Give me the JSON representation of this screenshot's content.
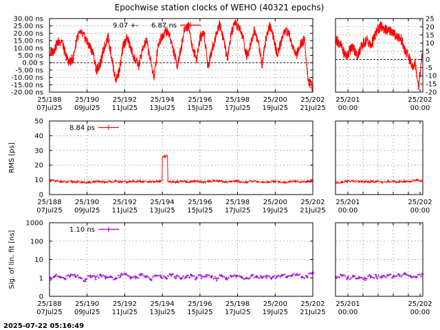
{
  "title": "Epochwise station clocks of WEHO (40321 epochs)",
  "timestamp": "2025-07-22 05:16:49",
  "colors": {
    "clock": "#ff0000",
    "rms": "#ff0000",
    "fit": "#9400d3"
  },
  "chart_data": [
    {
      "id": "clock",
      "type": "line",
      "ylabel": "",
      "ylim": [
        -20,
        30
      ],
      "left_yticks": [
        "-20.00 ns",
        "-15.00 ns",
        "-10.00 ns",
        "-5.00 ns",
        "0.00 s",
        "5.00 ns",
        "10.00 ns",
        "15.00 ns",
        "20.00 ns",
        "25.00 ns",
        "30.00 ns"
      ],
      "right_ylim": [
        -20,
        25
      ],
      "right_yticks": [
        "-20",
        "-15",
        "-10",
        "-5",
        "0",
        "5",
        "10",
        "15",
        "20",
        "25"
      ],
      "xticks_top": [
        "25/188",
        "25/190",
        "25/192",
        "25/194",
        "25/196",
        "25/198",
        "25/200",
        "25/202"
      ],
      "xticks_bottom": [
        "07Jul25",
        "09Jul25",
        "11Jul25",
        "13Jul25",
        "15Jul25",
        "17Jul25",
        "19Jul25",
        "21Jul25"
      ],
      "right_xticks_top": [
        "25/201",
        "25/202"
      ],
      "right_xticks_bottom": [
        "00:00",
        "00:00"
      ],
      "legend": [
        {
          "label": "9.07 +-",
          "style": "text"
        },
        {
          "label": "6.87 ns",
          "style": "line"
        }
      ],
      "series": [
        {
          "values": [
            6,
            9,
            14,
            15,
            5,
            0,
            3,
            18,
            20,
            17,
            12,
            8,
            -5,
            -1,
            10,
            18,
            3,
            -12,
            -5,
            12,
            17,
            9,
            2,
            -2,
            9,
            15,
            2,
            -10,
            12,
            18,
            22,
            19,
            8,
            -2,
            10,
            24,
            25,
            9,
            3,
            18,
            20,
            -3,
            9,
            18,
            27,
            16,
            2,
            20,
            26,
            24,
            18,
            4,
            13,
            22,
            14,
            -1,
            17,
            26,
            16,
            5,
            15,
            22,
            20,
            10,
            5,
            12,
            16,
            -12,
            -17
          ]
        },
        {
          "values": [
            12,
            10,
            5,
            2,
            6,
            8,
            2,
            6,
            10,
            12,
            8,
            13,
            18,
            20,
            19,
            17,
            18,
            15,
            14,
            12,
            5,
            2,
            -4,
            -2,
            -16,
            2
          ]
        }
      ]
    },
    {
      "id": "rms",
      "type": "line",
      "ylabel": "RMS [ps]",
      "ylim": [
        0,
        50
      ],
      "left_yticks": [
        "0",
        "10",
        "20",
        "30",
        "40",
        "50"
      ],
      "xticks_top": [
        "25/188",
        "25/190",
        "25/192",
        "25/194",
        "25/196",
        "25/198",
        "25/200",
        "25/202"
      ],
      "xticks_bottom": [
        "07Jul25",
        "09Jul25",
        "11Jul25",
        "13Jul25",
        "15Jul25",
        "17Jul25",
        "19Jul25",
        "21Jul25"
      ],
      "right_xticks_top": [
        "25/201",
        "25/202"
      ],
      "right_xticks_bottom": [
        "00:00",
        "00:00"
      ],
      "legend": [
        {
          "label": "8.84 ps",
          "style": "line"
        }
      ],
      "series": [
        {
          "values": [
            9.5,
            9.0,
            8.9,
            8.4,
            8.8,
            8.6,
            8.3,
            8.1,
            8.9,
            8.7,
            8.5,
            8.8,
            9.0,
            8.6,
            8.4,
            8.9,
            9.1,
            8.7,
            8.5,
            8.6,
            9.0,
            26.0,
            8.8,
            8.5,
            8.9,
            8.6,
            8.7,
            9.0,
            8.4,
            8.8,
            9.4,
            9.1,
            8.6,
            8.9,
            9.2,
            8.7,
            8.5,
            8.9,
            8.8,
            8.3,
            8.6,
            9.0,
            8.7,
            8.4,
            8.8,
            8.9,
            8.6,
            8.8,
            9.3
          ]
        },
        {
          "values": [
            8.0,
            8.6,
            9.2,
            9.0,
            8.8,
            8.6,
            8.7,
            8.9,
            8.5,
            8.7,
            8.8,
            8.6,
            9.0,
            8.9,
            10.0,
            9.2
          ]
        }
      ]
    },
    {
      "id": "fit",
      "type": "scatter",
      "ylabel": "Sig. of lin. fit [ns]",
      "scale": "log",
      "ylim": [
        0.1,
        1000
      ],
      "left_yticks": [
        "0",
        "1",
        "10",
        "100",
        "1000"
      ],
      "xticks_top": [
        "25/188",
        "25/190",
        "25/192",
        "25/194",
        "25/196",
        "25/198",
        "25/200",
        "25/202"
      ],
      "xticks_bottom": [
        "07Jul25",
        "09Jul25",
        "11Jul25",
        "13Jul25",
        "15Jul25",
        "17Jul25",
        "19Jul25",
        "21Jul25"
      ],
      "right_xticks_top": [
        "25/201",
        "25/202"
      ],
      "right_xticks_bottom": [
        "00:00",
        "00:00"
      ],
      "legend": [
        {
          "label": "1.10 ns",
          "style": "line"
        }
      ],
      "series": [
        {
          "values": [
            1.0,
            1.3,
            1.1,
            0.9,
            1.4,
            1.2,
            1.0,
            0.8,
            1.3,
            1.1,
            1.5,
            1.0,
            1.2,
            0.9,
            1.3,
            1.6,
            1.1,
            1.0,
            1.4,
            1.2,
            0.8,
            1.3,
            1.1,
            1.0,
            1.5,
            1.2,
            0.9,
            1.1,
            1.4,
            1.0,
            1.3,
            1.2,
            1.1,
            0.9,
            1.4,
            1.0,
            1.2,
            1.3,
            1.1,
            1.0,
            1.4,
            1.2,
            1.1,
            1.3,
            1.0,
            1.2,
            1.4,
            1.1,
            1.3,
            1.6,
            1.1,
            1.2,
            1.8
          ]
        },
        {
          "values": [
            1.1,
            1.3,
            1.0,
            1.2,
            1.1,
            1.0,
            1.3,
            1.2,
            1.1,
            1.4,
            1.2,
            1.5,
            1.8,
            1.2,
            1.1,
            1.6
          ]
        }
      ]
    }
  ]
}
